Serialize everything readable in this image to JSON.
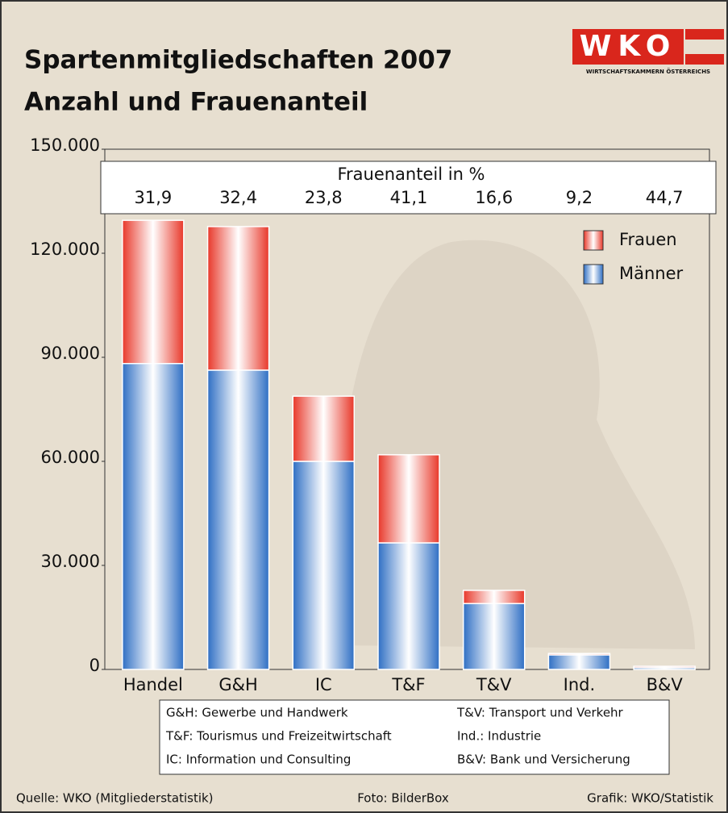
{
  "chart_data": {
    "type": "stacked_bar",
    "title": [
      "Spartenmitgliedschaften 2007",
      "Anzahl und Frauenanteil"
    ],
    "logo": {
      "text": "WKO",
      "subtitle": "WIRTSCHAFTSKAMMERN ÖSTERREICHS"
    },
    "categories": [
      "Handel",
      "G&H",
      "IC",
      "T&F",
      "T&V",
      "Ind.",
      "B&V"
    ],
    "series": [
      {
        "name": "Männer",
        "color": "#2f6fc4",
        "values": [
          88200,
          86300,
          60000,
          36500,
          19000,
          4200,
          500
        ]
      },
      {
        "name": "Frauen",
        "color": "#e8382a",
        "values": [
          41300,
          41400,
          18800,
          25400,
          3800,
          400,
          400
        ]
      }
    ],
    "female_share": {
      "title": "Frauenanteil in %",
      "values": [
        31.9,
        32.4,
        23.8,
        41.1,
        16.6,
        9.2,
        44.7
      ],
      "value_labels": [
        "31,9",
        "32,4",
        "23,8",
        "41,1",
        "16,6",
        "9,2",
        "44,7"
      ]
    },
    "ylim": [
      0,
      150000
    ],
    "yticks": [
      0,
      {
        "value": 30000,
        "label": "30.000"
      },
      {
        "value": 60000,
        "label": "60.000"
      },
      {
        "value": 90000,
        "label": "90.000"
      },
      {
        "value": 120000,
        "label": "120.000"
      },
      {
        "value": 150000,
        "label": "150.000"
      }
    ],
    "legend": "top-right",
    "abbreviations": [
      [
        "G&H: Gewerbe und Handwerk",
        "T&V: Transport und Verkehr"
      ],
      [
        "T&F: Tourismus und Freizeitwirtschaft",
        "Ind.: Industrie"
      ],
      [
        "IC: Information und Consulting",
        "B&V: Bank und Versicherung"
      ]
    ],
    "footer": [
      "Quelle: WKO (Mitgliederstatistik)",
      "Foto: BilderBox",
      "Grafik: WKO/Statistik"
    ]
  }
}
